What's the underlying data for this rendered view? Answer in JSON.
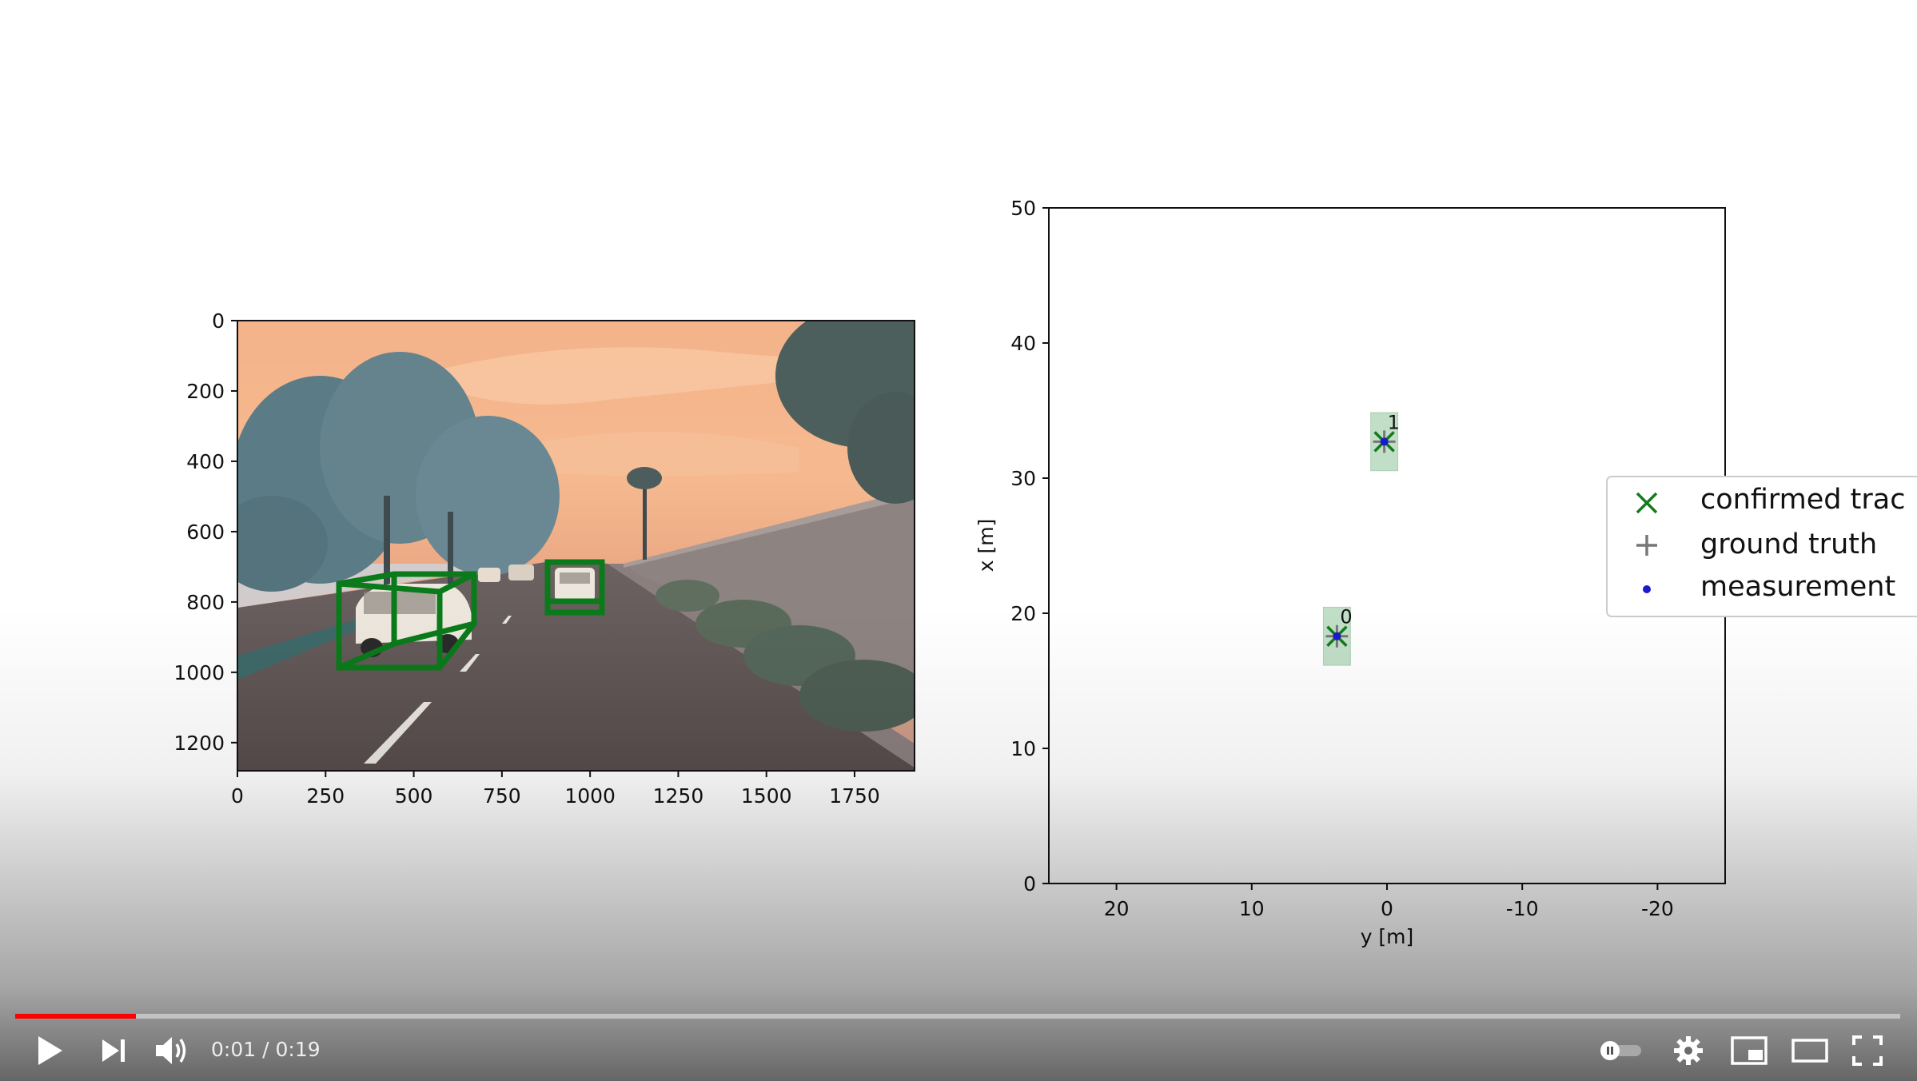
{
  "player": {
    "time_current": "0:01",
    "time_separator": "/",
    "time_total": "0:19",
    "progress_fraction": 0.064,
    "accent_color": "#ff0000",
    "icons": [
      "play-icon",
      "next-icon",
      "volume-icon",
      "autoplay-toggle-icon",
      "settings-gear-icon",
      "miniplayer-icon",
      "theater-mode-icon",
      "fullscreen-icon"
    ]
  },
  "camera_plot": {
    "x_ticks": [
      "0",
      "250",
      "500",
      "750",
      "1000",
      "1250",
      "1500",
      "1750"
    ],
    "y_ticks": [
      "0",
      "200",
      "400",
      "600",
      "800",
      "1000",
      "1200"
    ],
    "box_color": "#0a7a1a"
  },
  "chart_data": {
    "type": "scatter",
    "xlabel": "y [m]",
    "ylabel": "x [m]",
    "xlim": [
      25,
      -25
    ],
    "ylim": [
      0,
      50
    ],
    "x_ticks": [
      "20",
      "10",
      "0",
      "-10",
      "-20"
    ],
    "y_ticks": [
      "0",
      "10",
      "20",
      "30",
      "40",
      "50"
    ],
    "series": [
      {
        "name": "confirmed trac",
        "marker": "x",
        "color": "#157a1c",
        "points": [
          {
            "x": 3.7,
            "y": 18.3,
            "label": "0"
          },
          {
            "x": 0.2,
            "y": 32.7,
            "label": "1"
          }
        ]
      },
      {
        "name": "ground truth",
        "marker": "+",
        "color": "#777777",
        "points": [
          {
            "x": 3.7,
            "y": 18.3
          },
          {
            "x": 0.2,
            "y": 32.7
          }
        ]
      },
      {
        "name": "measurement",
        "marker": "dot",
        "color": "#1a1acc",
        "points": [
          {
            "x": 3.7,
            "y": 18.3
          },
          {
            "x": 0.2,
            "y": 32.7
          }
        ]
      }
    ],
    "legend_position": "right"
  }
}
